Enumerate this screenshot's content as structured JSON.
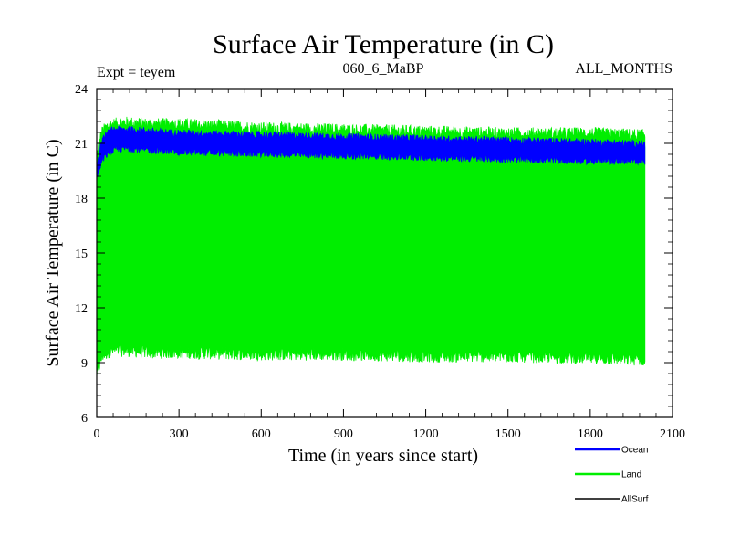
{
  "chart_data": {
    "type": "line",
    "title": "Surface Air Temperature (in C)",
    "subtitle_left": "Expt = teyem",
    "subtitle_center": "060_6_MaBP",
    "subtitle_right": "ALL_MONTHS",
    "xlabel": "Time (in years since start)",
    "ylabel": "Surface Air Temperature (in C)",
    "xlim": [
      0,
      2100
    ],
    "ylim": [
      6,
      24
    ],
    "x_ticks": [
      0,
      300,
      600,
      900,
      1200,
      1500,
      1800,
      2100
    ],
    "y_ticks": [
      6,
      9,
      12,
      15,
      18,
      21,
      24
    ],
    "x_ticks_text": [
      "0",
      "300",
      "600",
      "900",
      "1200",
      "1500",
      "1800",
      "2100"
    ],
    "y_ticks_text": [
      "6",
      "9",
      "12",
      "15",
      "18",
      "21",
      "24"
    ],
    "data_x_range": [
      0,
      2000
    ],
    "series": [
      {
        "name": "Ocean",
        "color": "#0000ff",
        "x": [
          0,
          10,
          20,
          40,
          60,
          100,
          200,
          300,
          600,
          900,
          1200,
          1500,
          1800,
          2000
        ],
        "upper": [
          19.8,
          20.6,
          21.2,
          21.6,
          21.8,
          21.8,
          21.7,
          21.6,
          21.5,
          21.4,
          21.3,
          21.2,
          21.1,
          21.0
        ],
        "lower": [
          19.0,
          19.6,
          20.1,
          20.4,
          20.6,
          20.7,
          20.6,
          20.5,
          20.4,
          20.3,
          20.2,
          20.1,
          20.0,
          20.0
        ]
      },
      {
        "name": "Land",
        "color": "#00ee00",
        "x": [
          0,
          10,
          20,
          40,
          60,
          100,
          200,
          300,
          600,
          900,
          1200,
          1500,
          1800,
          2000
        ],
        "upper": [
          20.3,
          21.2,
          21.7,
          22.0,
          22.1,
          22.2,
          22.1,
          22.1,
          21.9,
          21.8,
          21.7,
          21.6,
          21.6,
          21.5
        ],
        "lower": [
          8.2,
          8.8,
          9.3,
          9.5,
          9.6,
          9.6,
          9.5,
          9.5,
          9.4,
          9.4,
          9.3,
          9.3,
          9.2,
          9.1
        ]
      },
      {
        "name": "AllSurf",
        "color": "#000000",
        "x": [],
        "values": []
      }
    ],
    "legend": {
      "position": "bottom-right",
      "entries": [
        {
          "label": "Ocean",
          "color": "#0000ff"
        },
        {
          "label": "Land",
          "color": "#00ee00"
        },
        {
          "label": "AllSurf",
          "color": "#000000"
        }
      ]
    }
  }
}
